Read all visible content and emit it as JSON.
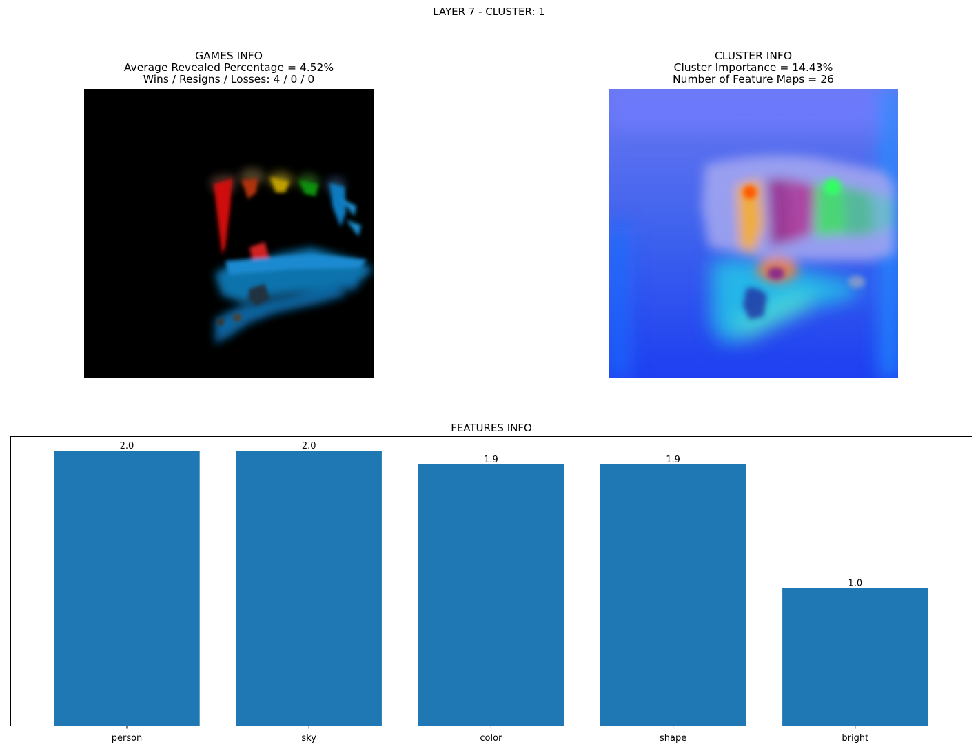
{
  "suptitle": "LAYER 7 - CLUSTER: 1",
  "games_info": {
    "title": "GAMES INFO",
    "line1": "Average Revealed Percentage = 4.52%",
    "line2": "Wins / Resigns / Losses: 4 / 0 / 0"
  },
  "cluster_info": {
    "title": "CLUSTER INFO",
    "line1": "Cluster Importance = 14.43%",
    "line2": "Number of Feature Maps = 26"
  },
  "chart_data": {
    "type": "bar",
    "title": "FEATURES INFO",
    "categories": [
      "person",
      "sky",
      "color",
      "shape",
      "bright"
    ],
    "values": [
      2.0,
      2.0,
      1.9,
      1.9,
      1.0
    ],
    "value_labels": [
      "2.0",
      "2.0",
      "1.9",
      "1.9",
      "1.0"
    ],
    "ylim": [
      0,
      2.1
    ],
    "bar_color": "#1f77b4",
    "grid": false,
    "y_ticks_visible": false
  }
}
